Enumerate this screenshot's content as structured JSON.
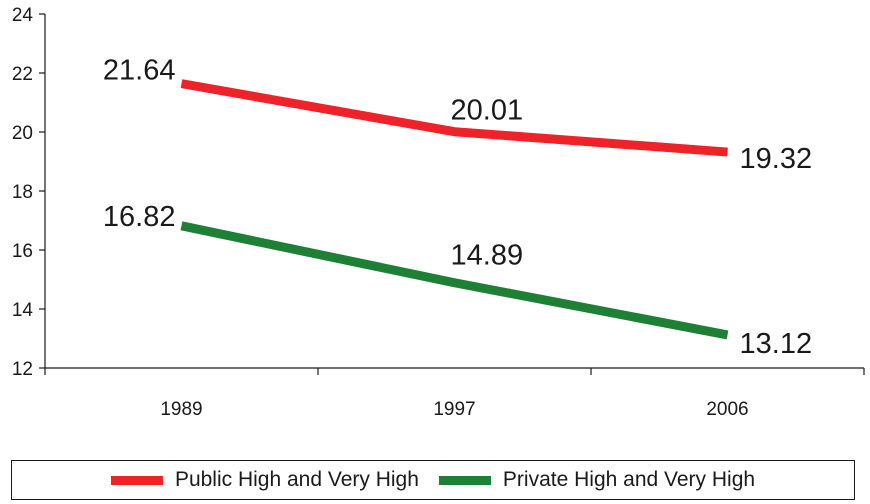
{
  "chart_data": {
    "type": "line",
    "categories": [
      "1989",
      "1997",
      "2006"
    ],
    "series": [
      {
        "name": "Public High and Very High",
        "values": [
          21.64,
          20.01,
          19.32
        ],
        "color": "#ee2229",
        "labels": [
          "21.64",
          "20.01",
          "19.32"
        ]
      },
      {
        "name": "Private High and Very High",
        "values": [
          16.82,
          14.89,
          13.12
        ],
        "color": "#1e8035",
        "labels": [
          "16.82",
          "14.89",
          "13.12"
        ]
      }
    ],
    "yticks": [
      "12",
      "14",
      "16",
      "18",
      "20",
      "22",
      "24"
    ],
    "ylim": [
      12,
      24
    ],
    "grid": false,
    "legend_position": "bottom",
    "title": "",
    "xlabel": "",
    "ylabel": ""
  }
}
